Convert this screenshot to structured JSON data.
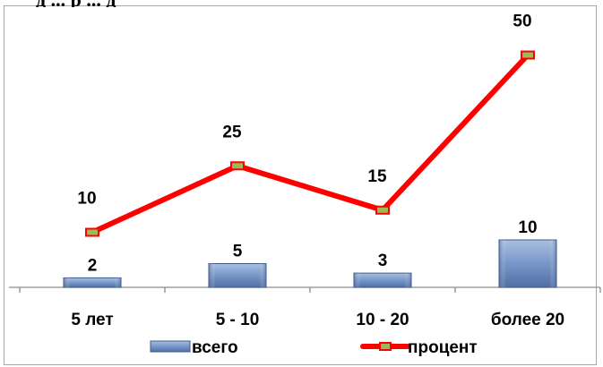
{
  "chart_data": {
    "type": "bar+line",
    "title_fragment": "д ... р ... д",
    "categories": [
      "5 лет",
      "5 - 10",
      "10 - 20",
      "более 20"
    ],
    "series": [
      {
        "name": "всего",
        "type": "bar",
        "values": [
          2,
          5,
          3,
          10
        ],
        "color": "#6f8fc0"
      },
      {
        "name": "процент",
        "type": "line",
        "values": [
          10,
          25,
          15,
          50
        ],
        "color": "#ff0000"
      }
    ],
    "data_labels": {
      "bars": [
        "2",
        "5",
        "3",
        "10"
      ],
      "line": [
        "10",
        "25",
        "15",
        "50"
      ]
    },
    "legend": {
      "placement": "bottom",
      "items": [
        {
          "label": "всего"
        },
        {
          "label": "процент"
        }
      ]
    },
    "gridlines": false
  }
}
